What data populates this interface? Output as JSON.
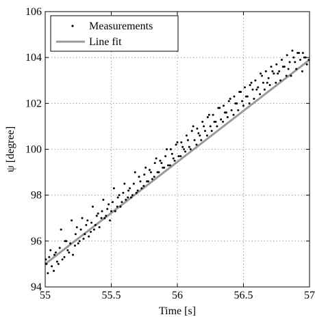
{
  "chart_data": {
    "type": "scatter",
    "title": "",
    "xlabel": "Time [s]",
    "ylabel": "ψ [degree]",
    "xlim": [
      55,
      57
    ],
    "ylim": [
      94,
      106
    ],
    "xticks": [
      55,
      55.5,
      56,
      56.5,
      57
    ],
    "xtick_labels": [
      "55",
      "55.5",
      "56",
      "56.5",
      "57"
    ],
    "yticks": [
      94,
      96,
      98,
      100,
      102,
      104,
      106
    ],
    "ytick_labels": [
      "94",
      "96",
      "98",
      "100",
      "102",
      "104",
      "106"
    ],
    "grid": true,
    "legend": {
      "position": "top-left",
      "entries": [
        "Measurements",
        "Line fit"
      ]
    },
    "series": [
      {
        "name": "Measurements",
        "kind": "scatter",
        "color": "#000000",
        "x": [
          55.005,
          55.02,
          55.04,
          55.065,
          55.08,
          55.1,
          55.12,
          55.145,
          55.16,
          55.18,
          55.2,
          55.225,
          55.24,
          55.26,
          55.28,
          55.3,
          55.32,
          55.345,
          55.36,
          55.38,
          55.4,
          55.425,
          55.44,
          55.46,
          55.48,
          55.5,
          55.52,
          55.545,
          55.56,
          55.58,
          55.6,
          55.625,
          55.64,
          55.66,
          55.68,
          55.7,
          55.72,
          55.745,
          55.76,
          55.78,
          55.8,
          55.825,
          55.84,
          55.86,
          55.88,
          55.9,
          55.92,
          55.945,
          55.96,
          55.98,
          56.0,
          56.025,
          56.04,
          56.06,
          56.08,
          56.1,
          56.12,
          56.145,
          56.16,
          56.18,
          56.2,
          56.225,
          56.24,
          56.26,
          56.28,
          56.3,
          56.32,
          56.345,
          56.36,
          56.38,
          56.4,
          56.425,
          56.44,
          56.46,
          56.48,
          56.5,
          56.52,
          56.545,
          56.56,
          56.58,
          56.6,
          56.625,
          56.64,
          56.66,
          56.68,
          56.7,
          56.72,
          56.745,
          56.76,
          56.78,
          56.8,
          56.825,
          56.84,
          56.86,
          56.88,
          56.9,
          56.92,
          56.945,
          56.96,
          56.98,
          55.01,
          55.03,
          55.05,
          55.07,
          55.09,
          55.11,
          55.13,
          55.15,
          55.17,
          55.19,
          55.21,
          55.23,
          55.25,
          55.27,
          55.29,
          55.31,
          55.33,
          55.35,
          55.37,
          55.39,
          55.41,
          55.43,
          55.45,
          55.47,
          55.49,
          55.51,
          55.53,
          55.55,
          55.57,
          55.59,
          55.61,
          55.63,
          55.65,
          55.67,
          55.69,
          55.71,
          55.73,
          55.75,
          55.77,
          55.79,
          55.81,
          55.83,
          55.85,
          55.87,
          55.89,
          55.91,
          55.93,
          55.95,
          55.97,
          55.99,
          56.01,
          56.03,
          56.05,
          56.07,
          56.09,
          56.11,
          56.13,
          56.15,
          56.17,
          56.19,
          56.21,
          56.23,
          56.25,
          56.27,
          56.29,
          56.31,
          56.33,
          56.35,
          56.37,
          56.39,
          56.41,
          56.43,
          56.45,
          56.47,
          56.49,
          56.51,
          56.53,
          56.55,
          56.57,
          56.59,
          56.61,
          56.63,
          56.65,
          56.67,
          56.69,
          56.71,
          56.73,
          56.75,
          56.77,
          56.79,
          56.81,
          56.83,
          56.85,
          56.87,
          56.89,
          56.91,
          56.93,
          56.95,
          56.97,
          56.995
        ],
        "y": [
          95.2,
          94.6,
          95.6,
          94.7,
          95.5,
          95.0,
          96.5,
          95.3,
          96.0,
          95.5,
          96.9,
          95.8,
          96.6,
          96.0,
          97.0,
          96.3,
          96.9,
          96.4,
          97.5,
          96.7,
          97.2,
          97.0,
          97.8,
          97.1,
          97.6,
          97.3,
          98.3,
          97.5,
          98.0,
          97.7,
          98.5,
          97.9,
          98.3,
          98.0,
          99.0,
          98.2,
          98.6,
          98.4,
          99.2,
          98.6,
          99.0,
          98.8,
          99.6,
          99.0,
          99.4,
          99.2,
          100.0,
          99.3,
          99.8,
          99.5,
          100.3,
          99.7,
          100.1,
          99.9,
          100.4,
          100.0,
          101.0,
          100.2,
          100.7,
          100.4,
          101.0,
          100.6,
          101.5,
          100.8,
          101.2,
          101.0,
          101.8,
          101.2,
          101.6,
          101.4,
          102.2,
          101.5,
          102.0,
          101.7,
          102.5,
          101.9,
          102.3,
          102.0,
          102.9,
          102.2,
          102.6,
          102.4,
          103.2,
          102.6,
          102.9,
          102.8,
          103.4,
          102.9,
          103.3,
          103.0,
          103.6,
          103.2,
          103.5,
          103.2,
          104.0,
          103.5,
          104.2,
          103.4,
          104.0,
          103.7,
          95.0,
          95.3,
          94.9,
          95.4,
          95.1,
          95.7,
          95.2,
          96.0,
          95.6,
          95.9,
          95.4,
          96.3,
          95.9,
          96.5,
          96.1,
          96.7,
          96.2,
          96.8,
          96.5,
          97.1,
          96.6,
          97.3,
          97.0,
          97.4,
          96.9,
          97.7,
          97.3,
          97.9,
          97.5,
          98.1,
          97.8,
          98.2,
          97.9,
          98.5,
          98.1,
          98.8,
          98.3,
          98.9,
          98.6,
          99.1,
          98.7,
          99.4,
          99.0,
          99.5,
          99.2,
          99.7,
          99.3,
          100.0,
          99.6,
          100.2,
          99.7,
          100.3,
          100.0,
          100.6,
          100.1,
          100.8,
          100.4,
          100.9,
          100.6,
          101.2,
          100.8,
          101.4,
          101.0,
          101.5,
          101.2,
          101.8,
          101.3,
          101.9,
          101.6,
          102.1,
          101.7,
          102.3,
          102.0,
          102.5,
          102.1,
          102.7,
          102.3,
          102.8,
          102.6,
          103.0,
          102.7,
          103.3,
          102.9,
          103.4,
          103.1,
          103.6,
          103.3,
          103.7,
          103.4,
          103.9,
          103.6,
          104.1,
          103.8,
          104.3,
          103.8,
          104.2,
          103.9,
          104.2,
          104.0,
          103.9
        ]
      },
      {
        "name": "Line fit",
        "kind": "line",
        "color": "#999999",
        "x": [
          55,
          57
        ],
        "y": [
          95.0,
          103.9
        ]
      }
    ]
  }
}
